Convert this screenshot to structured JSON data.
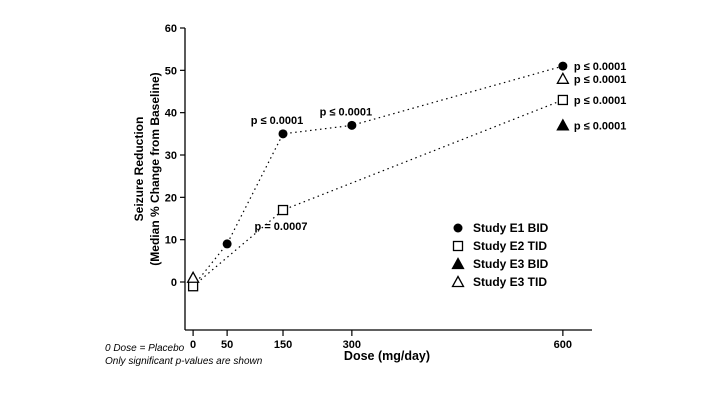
{
  "chart_data": {
    "type": "scatter",
    "title": "",
    "xlabel": "Dose (mg/day)",
    "ylabel": "Seizure Reduction (Median % Change from Baseline)",
    "ylabel_line1": "Seizure Reduction",
    "ylabel_line2": "(Median % Change from Baseline)",
    "x_axis": {
      "label": "Dose (mg/day)",
      "ticks": [
        {
          "value": 0,
          "pos": 0.02
        },
        {
          "value": 50,
          "pos": 0.104
        },
        {
          "value": 150,
          "pos": 0.242
        },
        {
          "value": 300,
          "pos": 0.412
        },
        {
          "value": 600,
          "pos": 0.933
        }
      ]
    },
    "y_axis": {
      "min": 0,
      "max": 60,
      "ticks": [
        0,
        10,
        20,
        30,
        40,
        50,
        60
      ]
    },
    "series": [
      {
        "name": "Study E1 BID",
        "marker": "filled-circle",
        "connect": true,
        "points": [
          {
            "x": 0,
            "y": -1
          },
          {
            "x": 50,
            "y": 9
          },
          {
            "x": 150,
            "y": 35
          },
          {
            "x": 300,
            "y": 37
          },
          {
            "x": 600,
            "y": 51
          }
        ]
      },
      {
        "name": "Study E2 TID",
        "marker": "open-square",
        "connect": true,
        "points": [
          {
            "x": 0,
            "y": -1
          },
          {
            "x": 150,
            "y": 17
          },
          {
            "x": 600,
            "y": 43
          }
        ]
      },
      {
        "name": "Study E3 BID",
        "marker": "filled-triangle",
        "connect": false,
        "points": [
          {
            "x": 600,
            "y": 37
          }
        ]
      },
      {
        "name": "Study E3 TID",
        "marker": "open-triangle",
        "connect": false,
        "points": [
          {
            "x": 0,
            "y": 1
          },
          {
            "x": 600,
            "y": 48
          }
        ]
      }
    ],
    "annotations": [
      {
        "text": "p ≤ 0.0001",
        "x": 150,
        "y": 35,
        "placement": "above"
      },
      {
        "text": "p ≤ 0.0001",
        "x": 300,
        "y": 37,
        "placement": "above"
      },
      {
        "text": "p = 0.0007",
        "x": 150,
        "y": 17,
        "placement": "below"
      },
      {
        "text": "p ≤ 0.0001",
        "x": 600,
        "y": 51,
        "placement": "right"
      },
      {
        "text": "p ≤ 0.0001",
        "x": 600,
        "y": 48,
        "placement": "right"
      },
      {
        "text": "p ≤ 0.0001",
        "x": 600,
        "y": 43,
        "placement": "right"
      },
      {
        "text": "p ≤ 0.0001",
        "x": 600,
        "y": 37,
        "placement": "right"
      }
    ],
    "legend": [
      {
        "marker": "filled-circle",
        "label": "Study E1 BID"
      },
      {
        "marker": "open-square",
        "label": "Study E2 TID"
      },
      {
        "marker": "filled-triangle",
        "label": "Study E3 BID"
      },
      {
        "marker": "open-triangle",
        "label": "Study E3 TID"
      }
    ],
    "footnotes": [
      "0 Dose = Placebo",
      "Only significant p-values are shown"
    ],
    "legend_position": "inside-right",
    "grid": false,
    "colors": {
      "foreground": "#000000",
      "background": "#ffffff"
    }
  }
}
